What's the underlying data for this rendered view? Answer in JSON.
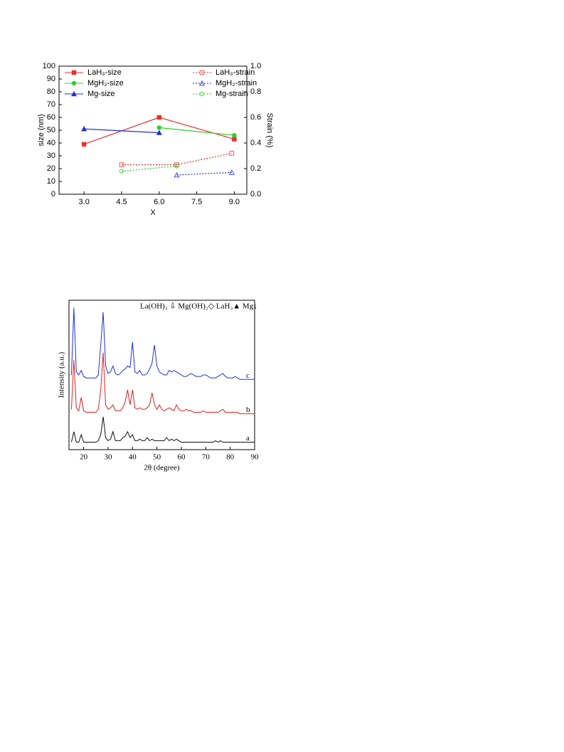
{
  "chart_data": [
    {
      "type": "line",
      "x_label": "X",
      "y_label": "size (nm)",
      "y2_label": "Strain (%)",
      "xlim": [
        2,
        9.5
      ],
      "ylim": [
        0,
        100
      ],
      "y2lim": [
        0,
        1
      ],
      "xticks": [
        {
          "value": 3,
          "label": "3.0"
        },
        4.5,
        {
          "value": 6,
          "label": "6.0"
        },
        7.5,
        {
          "value": 9,
          "label": "9.0"
        }
      ],
      "yticks": [
        0,
        10,
        20,
        30,
        40,
        50,
        60,
        70,
        80,
        90,
        100
      ],
      "y2ticks": [
        {
          "value": 0,
          "label": "0.0"
        },
        0.2,
        0.4,
        0.6,
        0.8,
        {
          "value": 1,
          "label": "1.0"
        }
      ],
      "series": [
        {
          "name": "LaH₃-size",
          "color": "#e8312f",
          "marker": "square",
          "filled": true,
          "dashed": false,
          "x": [
            3,
            6,
            9
          ],
          "values": [
            39,
            60,
            43
          ]
        },
        {
          "name": "MgH₂-size",
          "color": "#2bd12b",
          "marker": "circle",
          "filled": true,
          "dashed": false,
          "x": [
            6,
            9
          ],
          "values": [
            52,
            46
          ]
        },
        {
          "name": "Mg-size",
          "color": "#1f2fd0",
          "marker": "triangle",
          "filled": true,
          "dashed": false,
          "x": [
            3,
            6
          ],
          "values": [
            51,
            48
          ]
        },
        {
          "name": "LaH₃-strain",
          "color": "#e8312f",
          "marker": "square",
          "filled": false,
          "dashed": true,
          "axis": "y2",
          "x": [
            4.5,
            6.7,
            8.9
          ],
          "values": [
            0.23,
            0.23,
            0.32
          ]
        },
        {
          "name": "MgH₂-strain",
          "color": "#1f2fd0",
          "marker": "triangle",
          "filled": false,
          "dashed": true,
          "axis": "y2",
          "x": [
            6.7,
            8.9
          ],
          "values": [
            0.15,
            0.17
          ]
        },
        {
          "name": "Mg-strain",
          "color": "#2bd12b",
          "marker": "circle",
          "filled": false,
          "dashed": true,
          "axis": "y2",
          "x": [
            4.5,
            6.7
          ],
          "values": [
            0.18,
            0.22
          ]
        }
      ]
    },
    {
      "type": "line",
      "legend_text": "La(OH)₃ ⇩   Mg(OH)₂◇   LaH₃▲    Mg↓",
      "x_label": "2θ (degree)",
      "y_label": "Intensity (a.u.)",
      "xlim": [
        14,
        90
      ],
      "ylim": [
        0,
        100
      ],
      "xticks": [
        20,
        30,
        40,
        50,
        60,
        70,
        80,
        90
      ],
      "x": [
        15,
        16,
        17,
        18,
        19,
        20,
        21,
        22,
        23,
        24,
        25,
        26,
        27,
        28,
        29,
        30,
        31,
        32,
        33,
        34,
        35,
        36,
        37,
        38,
        39,
        40,
        41,
        42,
        43,
        44,
        45,
        46,
        47,
        48,
        49,
        50,
        51,
        52,
        53,
        54,
        55,
        56,
        57,
        58,
        59,
        60,
        61,
        62,
        63,
        64,
        65,
        66,
        67,
        68,
        69,
        70,
        71,
        72,
        73,
        74,
        75,
        76,
        77,
        78,
        79,
        80,
        81,
        82,
        83,
        84,
        85,
        86,
        87,
        88,
        89,
        90
      ],
      "series": [
        {
          "name": "a",
          "color": "#111111",
          "values": [
            5,
            12,
            5,
            5,
            10,
            5,
            5,
            5,
            5,
            5,
            5,
            6,
            10,
            22,
            8,
            6,
            7,
            12,
            6,
            6,
            6,
            8,
            9,
            12,
            8,
            10,
            6,
            6,
            7,
            6,
            6,
            8,
            6,
            7,
            6,
            6,
            6,
            6,
            6,
            8,
            6,
            7,
            6,
            7,
            6,
            5,
            5,
            5,
            5,
            5,
            5,
            5,
            5,
            5,
            5,
            5,
            5,
            5,
            5,
            6,
            5,
            6,
            5,
            5,
            5,
            5,
            5,
            5,
            5,
            5,
            5,
            5,
            5,
            5,
            5,
            5
          ]
        },
        {
          "name": "b",
          "color": "#e02020",
          "values": [
            27,
            60,
            28,
            26,
            35,
            26,
            25,
            25,
            25,
            25,
            25,
            27,
            40,
            65,
            30,
            27,
            28,
            30,
            26,
            26,
            26,
            28,
            32,
            40,
            30,
            40,
            28,
            27,
            28,
            27,
            27,
            28,
            30,
            38,
            30,
            27,
            30,
            27,
            26,
            27,
            28,
            27,
            26,
            30,
            27,
            26,
            26,
            27,
            26,
            26,
            25,
            25,
            25,
            25,
            26,
            25,
            25,
            25,
            25,
            25,
            25,
            26,
            27,
            25,
            25,
            25,
            25,
            25,
            25,
            24,
            24,
            24,
            24,
            24,
            24,
            24
          ]
        },
        {
          "name": "c",
          "color": "#2030e0",
          "values": [
            50,
            95,
            52,
            50,
            53,
            49,
            48,
            48,
            48,
            48,
            48,
            50,
            70,
            92,
            56,
            51,
            52,
            56,
            51,
            50,
            51,
            53,
            54,
            56,
            55,
            72,
            52,
            51,
            53,
            50,
            50,
            51,
            54,
            58,
            70,
            56,
            52,
            51,
            50,
            50,
            53,
            52,
            53,
            52,
            51,
            50,
            49,
            49,
            50,
            51,
            50,
            49,
            49,
            49,
            50,
            50,
            49,
            48,
            48,
            48,
            49,
            50,
            51,
            49,
            48,
            48,
            48,
            49,
            48,
            47,
            47,
            47,
            47,
            47,
            47,
            47
          ]
        }
      ]
    }
  ]
}
